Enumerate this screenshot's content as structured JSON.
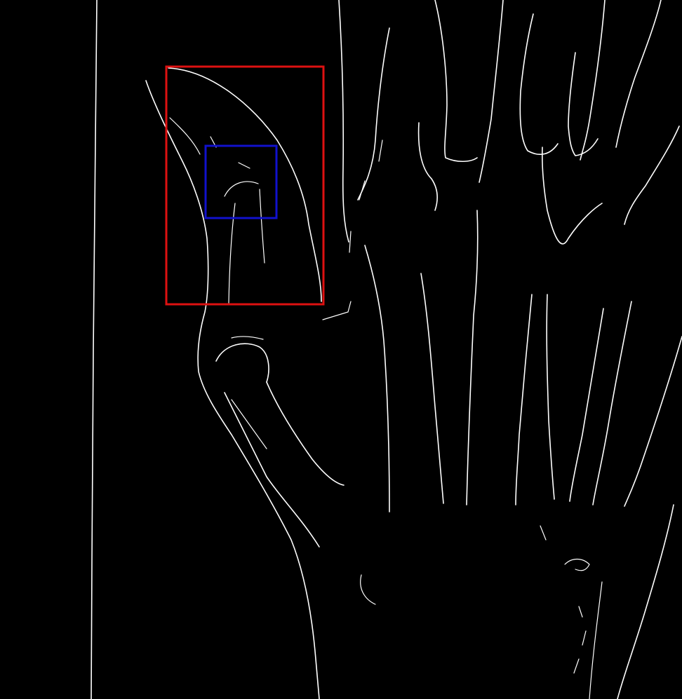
{
  "image": {
    "kind": "edge-detection-xray-hand",
    "background_color": "#000000",
    "edge_color": "#ffffff"
  },
  "annotations": {
    "outer_box": {
      "label": "region-of-interest",
      "color": "#dd1111"
    },
    "inner_box": {
      "label": "focus-region",
      "color": "#1111cc"
    }
  }
}
